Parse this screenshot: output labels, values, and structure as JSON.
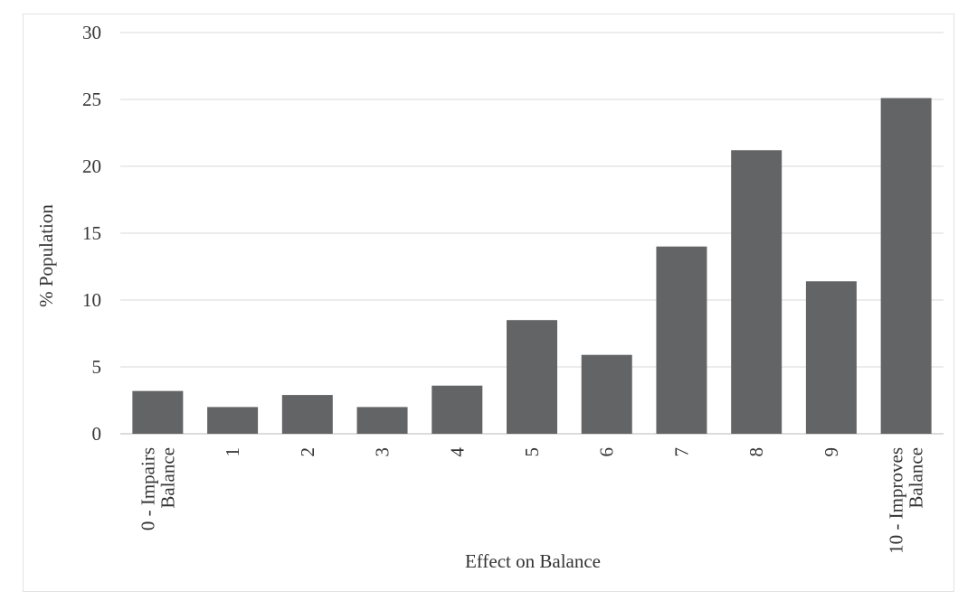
{
  "chart_data": {
    "type": "bar",
    "title": "",
    "xlabel": "Effect on Balance",
    "ylabel": "% Population",
    "ylim": [
      0,
      30
    ],
    "yticks": [
      0,
      5,
      10,
      15,
      20,
      25,
      30
    ],
    "grid": true,
    "categories": [
      "0 - Impairs Balance",
      "1",
      "2",
      "3",
      "4",
      "5",
      "6",
      "7",
      "8",
      "9",
      "10 - Improves Balance"
    ],
    "category_lines": [
      [
        "0 - Impairs",
        "Balance"
      ],
      [
        "1"
      ],
      [
        "2"
      ],
      [
        "3"
      ],
      [
        "4"
      ],
      [
        "5"
      ],
      [
        "6"
      ],
      [
        "7"
      ],
      [
        "8"
      ],
      [
        "9"
      ],
      [
        "10 - Improves",
        "Balance"
      ]
    ],
    "values": [
      3.2,
      2.0,
      2.9,
      2.0,
      3.6,
      8.5,
      5.9,
      14.0,
      21.2,
      11.4,
      25.1
    ],
    "bar_color": "#636466",
    "grid_color": "#e6e6e6"
  }
}
